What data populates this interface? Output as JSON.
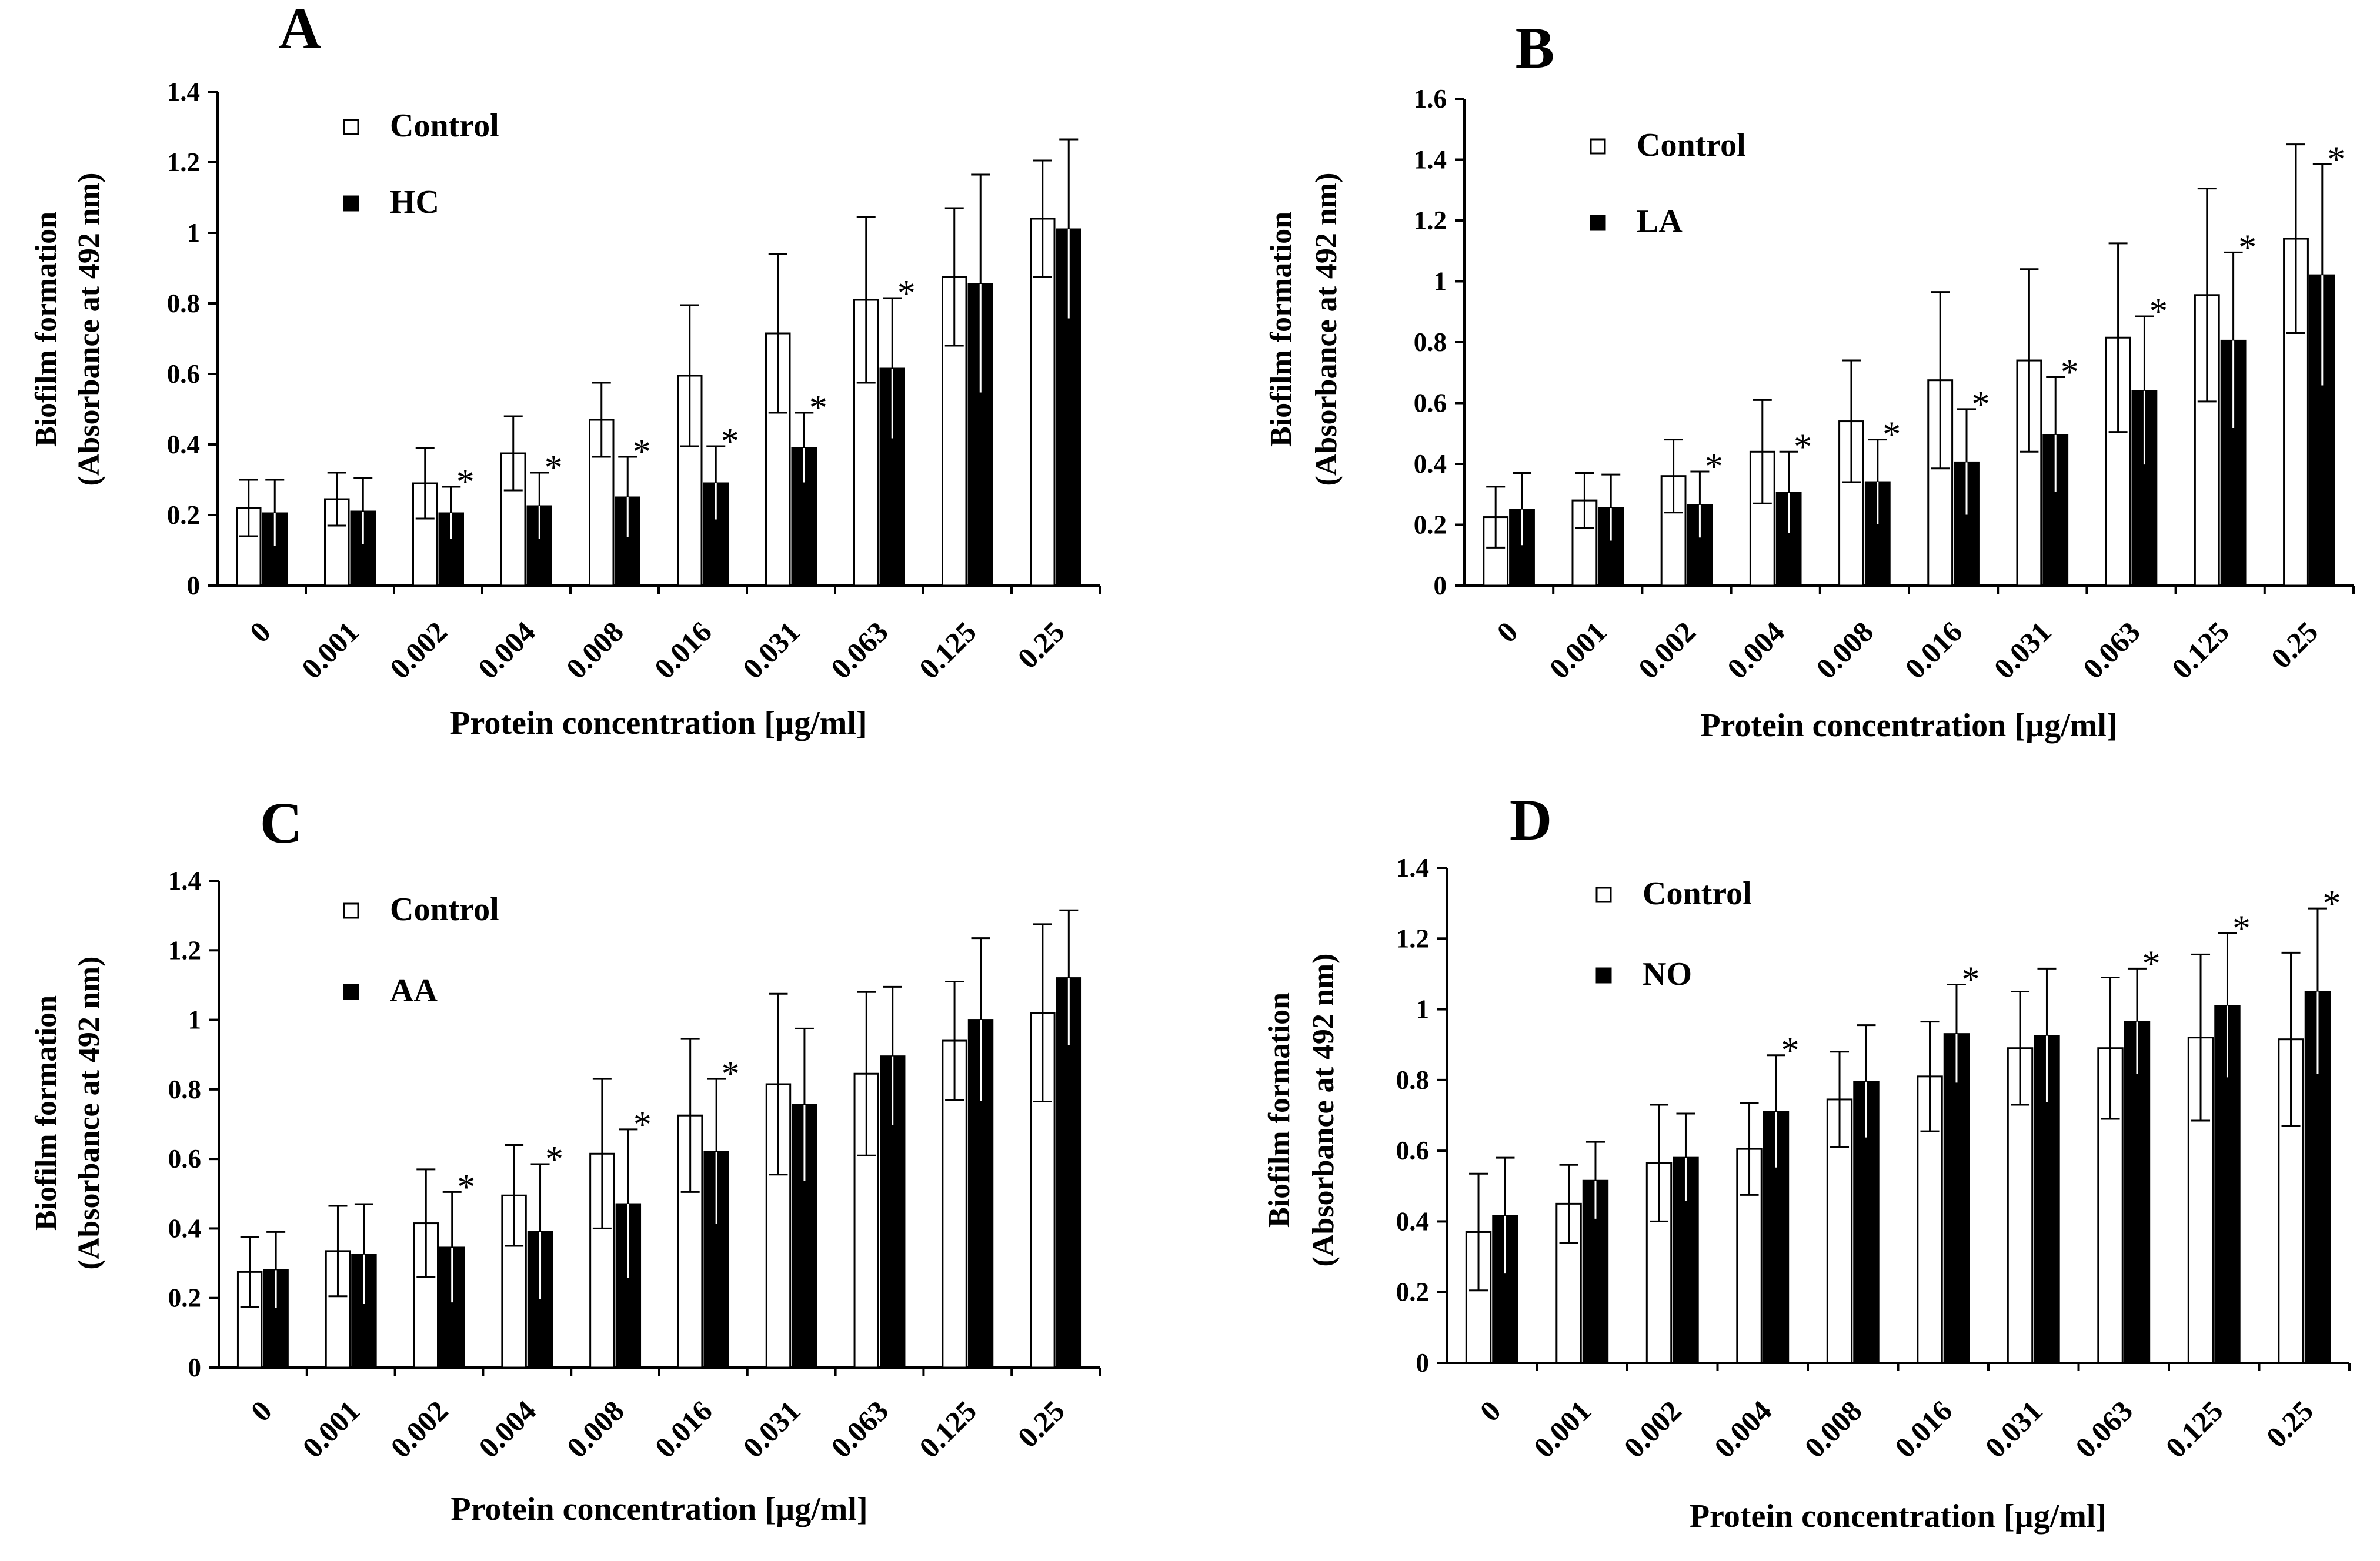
{
  "figure": {
    "x_categories": [
      "0",
      "0.001",
      "0.002",
      "0.004",
      "0.008",
      "0.016",
      "0.031",
      "0.063",
      "0.125",
      "0.25"
    ],
    "xlabel": "Protein concentration [µg/ml]",
    "ylabel_line1": "Biofilm  formation",
    "ylabel_line2": "(Absorbance at 492 nm)",
    "colors": {
      "control": "#ffffff",
      "treatment": "#000000",
      "stroke": "#000000"
    }
  },
  "chart_data": [
    {
      "panel": "A",
      "type": "bar",
      "ylim": [
        0,
        1.4
      ],
      "yticks": [
        0,
        0.2,
        0.4,
        0.6,
        0.8,
        1,
        1.2,
        1.4
      ],
      "ytick_labels": [
        "0",
        "0.2",
        "0.4",
        "0.6",
        "0.8",
        "1",
        "1.2",
        "1.4"
      ],
      "legend_placement": "top-left",
      "series": [
        {
          "name": "Control",
          "values": [
            0.22,
            0.245,
            0.29,
            0.375,
            0.47,
            0.595,
            0.715,
            0.81,
            0.875,
            1.04
          ],
          "errors": [
            0.08,
            0.075,
            0.1,
            0.105,
            0.105,
            0.2,
            0.225,
            0.235,
            0.195,
            0.165
          ]
        },
        {
          "name": "HC",
          "values": [
            0.205,
            0.21,
            0.205,
            0.225,
            0.25,
            0.29,
            0.39,
            0.615,
            0.855,
            1.01
          ],
          "errors": [
            0.095,
            0.095,
            0.075,
            0.095,
            0.115,
            0.105,
            0.1,
            0.2,
            0.31,
            0.255
          ]
        }
      ],
      "significant": [
        false,
        false,
        true,
        true,
        true,
        true,
        true,
        true,
        false,
        false
      ]
    },
    {
      "panel": "B",
      "type": "bar",
      "ylim": [
        0,
        1.6
      ],
      "yticks": [
        0,
        0.2,
        0.4,
        0.6,
        0.8,
        1,
        1.2,
        1.4,
        1.6
      ],
      "ytick_labels": [
        "0",
        "0.2",
        "0.4",
        "0.6",
        "0.8",
        "1",
        "1.2",
        "1.4",
        "1.6"
      ],
      "legend_placement": "top-left",
      "series": [
        {
          "name": "Control",
          "values": [
            0.225,
            0.28,
            0.36,
            0.44,
            0.54,
            0.675,
            0.74,
            0.815,
            0.955,
            1.14
          ],
          "errors": [
            0.1,
            0.09,
            0.12,
            0.17,
            0.2,
            0.29,
            0.3,
            0.31,
            0.35,
            0.31
          ]
        },
        {
          "name": "LA",
          "values": [
            0.25,
            0.255,
            0.265,
            0.305,
            0.34,
            0.405,
            0.495,
            0.64,
            0.805,
            1.02
          ],
          "errors": [
            0.12,
            0.11,
            0.11,
            0.135,
            0.14,
            0.175,
            0.19,
            0.245,
            0.29,
            0.365
          ]
        }
      ],
      "significant": [
        false,
        false,
        true,
        true,
        true,
        true,
        true,
        true,
        true,
        true
      ]
    },
    {
      "panel": "C",
      "type": "bar",
      "ylim": [
        0,
        1.4
      ],
      "yticks": [
        0,
        0.2,
        0.4,
        0.6,
        0.8,
        1,
        1.2,
        1.4
      ],
      "ytick_labels": [
        "0",
        "0.2",
        "0.4",
        "0.6",
        "0.8",
        "1",
        "1.2",
        "1.4"
      ],
      "legend_placement": "top-left",
      "series": [
        {
          "name": "Control",
          "values": [
            0.275,
            0.335,
            0.415,
            0.495,
            0.615,
            0.725,
            0.815,
            0.845,
            0.94,
            1.02
          ],
          "errors": [
            0.1,
            0.13,
            0.155,
            0.145,
            0.215,
            0.22,
            0.26,
            0.235,
            0.17,
            0.255
          ]
        },
        {
          "name": "AA",
          "values": [
            0.28,
            0.325,
            0.345,
            0.39,
            0.47,
            0.62,
            0.755,
            0.895,
            1.0,
            1.12
          ],
          "errors": [
            0.11,
            0.145,
            0.16,
            0.195,
            0.215,
            0.21,
            0.22,
            0.2,
            0.235,
            0.195
          ]
        }
      ],
      "significant": [
        false,
        false,
        true,
        true,
        true,
        true,
        false,
        false,
        false,
        false
      ]
    },
    {
      "panel": "D",
      "type": "bar",
      "ylim": [
        0,
        1.4
      ],
      "yticks": [
        0,
        0.2,
        0.4,
        0.6,
        0.8,
        1,
        1.2,
        1.4
      ],
      "ytick_labels": [
        "0",
        "0.2",
        "0.4",
        "0.6",
        "0.8",
        "1",
        "1.2",
        "1.4"
      ],
      "legend_placement": "top-left",
      "series": [
        {
          "name": "Control",
          "values": [
            0.37,
            0.45,
            0.565,
            0.605,
            0.745,
            0.81,
            0.89,
            0.89,
            0.92,
            0.915
          ],
          "errors": [
            0.165,
            0.11,
            0.165,
            0.13,
            0.135,
            0.155,
            0.16,
            0.2,
            0.235,
            0.245
          ]
        },
        {
          "name": "NO",
          "values": [
            0.415,
            0.515,
            0.58,
            0.71,
            0.795,
            0.93,
            0.925,
            0.965,
            1.01,
            1.05
          ],
          "errors": [
            0.165,
            0.11,
            0.125,
            0.16,
            0.16,
            0.14,
            0.19,
            0.15,
            0.205,
            0.235
          ]
        }
      ],
      "significant": [
        false,
        false,
        false,
        true,
        false,
        true,
        false,
        true,
        true,
        true
      ]
    }
  ]
}
